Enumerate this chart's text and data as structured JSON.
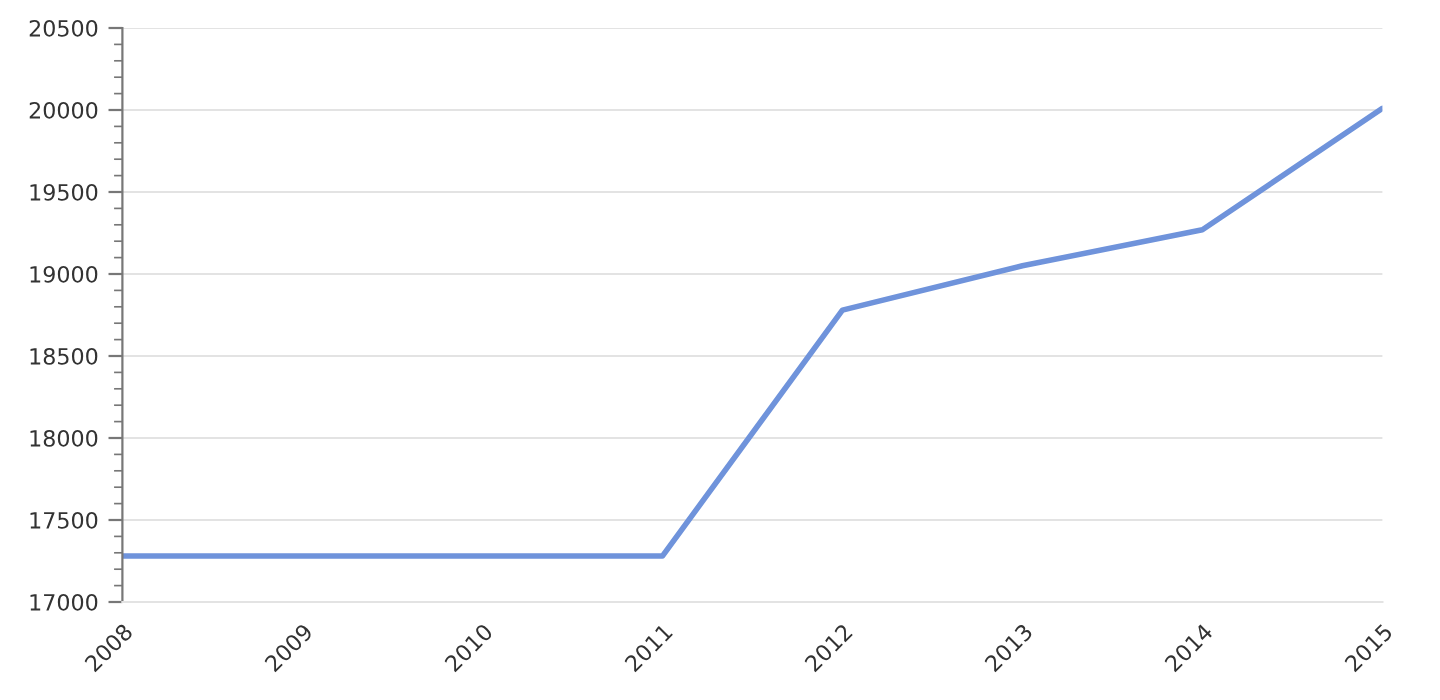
{
  "chart_data": {
    "type": "line",
    "x": [
      2008,
      2009,
      2010,
      2011,
      2012,
      2013,
      2014,
      2015
    ],
    "series": [
      {
        "color": "#6f93db",
        "values": [
          17280,
          17280,
          17280,
          17280,
          18780,
          19050,
          19270,
          20010
        ]
      }
    ],
    "xlim": [
      2008,
      2015
    ],
    "xticks": [
      2008,
      2009,
      2010,
      2011,
      2012,
      2013,
      2014,
      2015
    ],
    "ylim": [
      17000,
      20500
    ],
    "yticks": [
      17000,
      17500,
      18000,
      18500,
      19000,
      19500,
      20000,
      20500
    ],
    "grid": "y",
    "legend": false,
    "marker": "none",
    "line_style": "solid"
  }
}
